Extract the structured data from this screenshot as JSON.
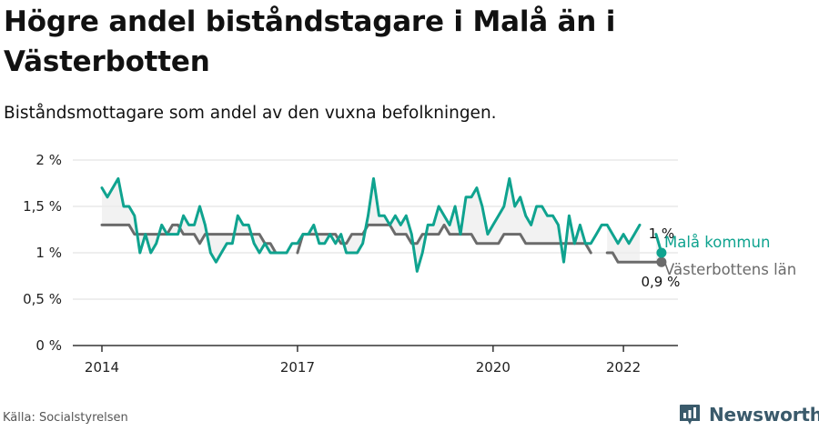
{
  "header": {
    "title": "Högre andel biståndstagare i Malå än i Västerbotten",
    "subtitle": "Biståndsmottagare som andel av den vuxna befolkningen."
  },
  "footer": {
    "source": "Källa: Socialstyrelsen",
    "brand": "Newsworthy",
    "brand_icon": "newsworthy-logo-icon"
  },
  "colors": {
    "mala": "#0fa38f",
    "vasterbotten": "#6b6b6b",
    "gap_fill": "#ececec",
    "grid": "#dddddd",
    "axis": "#333333",
    "brand": "#3a5a6b"
  },
  "chart_data": {
    "type": "line",
    "x_start": "2014-01",
    "x_end": "2022-06",
    "x_unit": "month",
    "xticks": [
      "2014",
      "2017",
      "2020",
      "2022"
    ],
    "yticks": [
      "0 %",
      "0,5 %",
      "1 %",
      "1,5 %",
      "2 %"
    ],
    "ylim": [
      0,
      2
    ],
    "grid": true,
    "legend": "end-of-line labels",
    "series": [
      {
        "name": "Malå kommun",
        "color": "#0fa38f",
        "end_label": "1 %",
        "values": [
          1.7,
          1.6,
          1.7,
          1.8,
          1.5,
          1.5,
          1.4,
          1.0,
          1.2,
          1.0,
          1.1,
          1.3,
          1.2,
          1.2,
          1.2,
          1.4,
          1.3,
          1.3,
          1.5,
          1.3,
          1.0,
          0.9,
          1.0,
          1.1,
          1.1,
          1.4,
          1.3,
          1.3,
          1.1,
          1.0,
          1.1,
          1.0,
          1.0,
          1.0,
          1.0,
          1.1,
          1.1,
          1.2,
          1.2,
          1.3,
          1.1,
          1.1,
          1.2,
          1.1,
          1.2,
          1.0,
          1.0,
          1.0,
          1.1,
          1.4,
          1.8,
          1.4,
          1.4,
          1.3,
          1.4,
          1.3,
          1.4,
          1.2,
          0.8,
          1.0,
          1.3,
          1.3,
          1.5,
          1.4,
          1.3,
          1.5,
          1.2,
          1.6,
          1.6,
          1.7,
          1.5,
          1.2,
          1.3,
          1.4,
          1.5,
          1.8,
          1.5,
          1.6,
          1.4,
          1.3,
          1.5,
          1.5,
          1.4,
          1.4,
          1.3,
          0.9,
          1.4,
          1.1,
          1.3,
          1.1,
          1.1,
          1.2,
          1.3,
          1.3,
          1.2,
          1.1,
          1.2,
          1.1,
          1.2,
          1.3,
          null,
          null,
          1.2,
          1.0
        ]
      },
      {
        "name": "Västerbottens län",
        "color": "#6b6b6b",
        "end_label": "0,9 %",
        "values": [
          1.3,
          1.3,
          1.3,
          1.3,
          1.3,
          1.3,
          1.2,
          1.2,
          1.2,
          1.2,
          1.2,
          1.2,
          1.2,
          1.3,
          1.3,
          1.2,
          1.2,
          1.2,
          1.1,
          1.2,
          1.2,
          1.2,
          1.2,
          1.2,
          1.2,
          1.2,
          1.2,
          1.2,
          1.2,
          1.2,
          1.1,
          1.1,
          1.0,
          1.0,
          null,
          null,
          1.0,
          1.2,
          1.2,
          1.2,
          1.2,
          1.2,
          1.2,
          1.2,
          1.1,
          1.1,
          1.2,
          1.2,
          1.2,
          1.3,
          1.3,
          1.3,
          1.3,
          1.3,
          1.2,
          1.2,
          1.2,
          1.1,
          1.1,
          1.2,
          1.2,
          1.2,
          1.2,
          1.3,
          1.2,
          1.2,
          1.2,
          1.2,
          1.2,
          1.1,
          1.1,
          1.1,
          1.1,
          1.1,
          1.2,
          1.2,
          1.2,
          1.2,
          1.1,
          1.1,
          1.1,
          1.1,
          1.1,
          1.1,
          1.1,
          1.1,
          1.1,
          1.1,
          1.1,
          1.1,
          1.0,
          null,
          null,
          1.0,
          1.0,
          0.9,
          0.9,
          0.9,
          0.9,
          0.9,
          0.9,
          0.9,
          0.9,
          0.9
        ]
      }
    ]
  }
}
